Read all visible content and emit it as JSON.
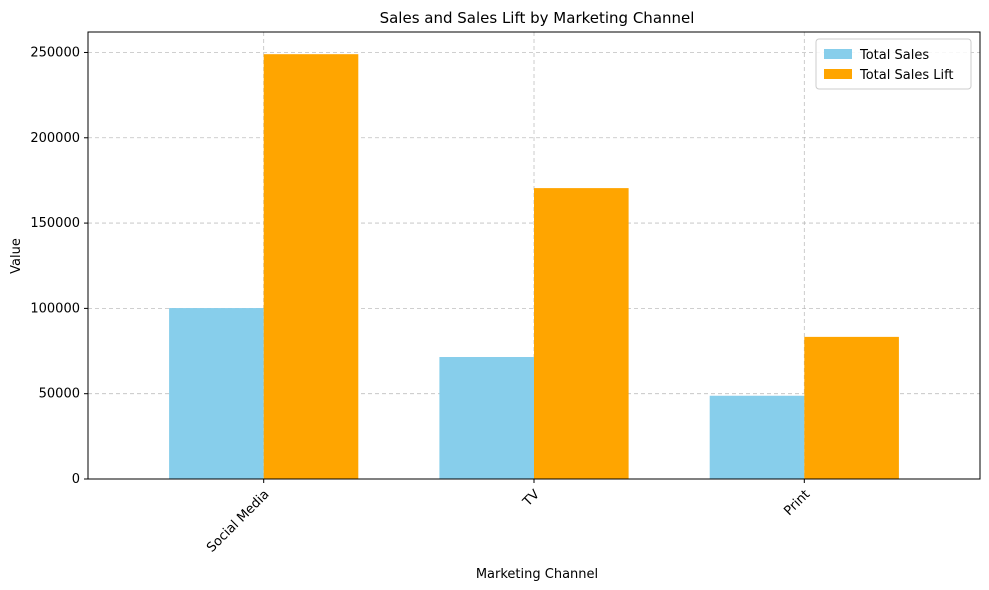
{
  "chart_data": {
    "type": "bar",
    "title": "Sales and Sales Lift by Marketing Channel",
    "xlabel": "Marketing Channel",
    "ylabel": "Value",
    "categories": [
      "Social Media",
      "TV",
      "Print"
    ],
    "series": [
      {
        "name": "Total Sales",
        "color": "#87ceeb",
        "values": [
          100200,
          71500,
          48800
        ]
      },
      {
        "name": "Total Sales Lift",
        "color": "#ffa500",
        "values": [
          249000,
          170500,
          83300
        ]
      }
    ],
    "ylim": [
      0,
      262000
    ],
    "yticks": [
      0,
      50000,
      100000,
      150000,
      200000,
      250000
    ],
    "ytick_labels": [
      "0",
      "50000",
      "100000",
      "150000",
      "200000",
      "250000"
    ],
    "grid": true,
    "legend_position": "top-right",
    "xtick_rotation_deg": 45
  }
}
